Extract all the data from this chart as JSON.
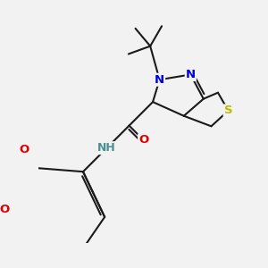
{
  "bg_color": "#f2f2f2",
  "bond_color": "#1a1a1a",
  "bond_width": 1.5,
  "dbo": 0.06,
  "atom_colors": {
    "O": "#e00000",
    "N": "#0000dd",
    "S": "#bbbb00",
    "NH": "#4a9090",
    "C": "#1a1a1a"
  },
  "font_size": 9.5,
  "fig_size": [
    3.0,
    3.0
  ],
  "dpi": 100
}
